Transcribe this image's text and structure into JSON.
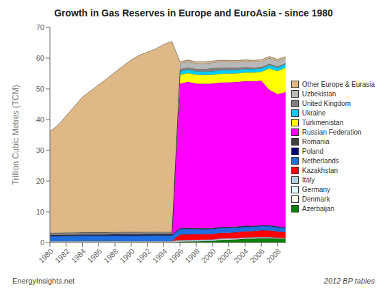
{
  "chart_data": {
    "type": "area",
    "stacked": true,
    "title": "Growth in Gas Reserves in Europe and EuroAsia - since 1980",
    "y_label": "Trillion Cubic Metres (TCM)",
    "annotations": [
      "EnergyInsights.net",
      "2012 BP tables"
    ],
    "x": [
      1980,
      1981,
      1982,
      1983,
      1984,
      1985,
      1986,
      1987,
      1988,
      1989,
      1990,
      1991,
      1992,
      1993,
      1994,
      1995,
      1996,
      1997,
      1998,
      1999,
      2000,
      2001,
      2002,
      2003,
      2004,
      2005,
      2006,
      2007,
      2008,
      2009
    ],
    "xlim": [
      1980,
      2009
    ],
    "xticks": [
      1980,
      1982,
      1984,
      1986,
      1988,
      1990,
      1992,
      1994,
      1996,
      1998,
      2000,
      2002,
      2004,
      2006,
      2008
    ],
    "ylim": [
      0,
      70
    ],
    "yticks": [
      0,
      10,
      20,
      30,
      40,
      50,
      60,
      70
    ],
    "grid": false,
    "legend": "right",
    "series": [
      {
        "name": "Azerbaijan",
        "color": "#008000",
        "values": [
          0.0,
          0.0,
          0.0,
          0.0,
          0.0,
          0.0,
          0.0,
          0.0,
          0.0,
          0.0,
          0.0,
          0.0,
          0.0,
          0.0,
          0.0,
          0.0,
          0.3,
          0.35,
          0.4,
          0.45,
          0.5,
          0.85,
          0.9,
          1.0,
          1.2,
          1.3,
          1.4,
          1.4,
          1.3,
          1.2
        ]
      },
      {
        "name": "Denmark",
        "color": "#fffff0",
        "values": [
          0.07,
          0.07,
          0.07,
          0.07,
          0.08,
          0.08,
          0.08,
          0.08,
          0.1,
          0.1,
          0.1,
          0.1,
          0.1,
          0.1,
          0.09,
          0.09,
          0.09,
          0.08,
          0.08,
          0.08,
          0.08,
          0.08,
          0.07,
          0.07,
          0.07,
          0.06,
          0.06,
          0.05,
          0.05,
          0.05
        ]
      },
      {
        "name": "Germany",
        "color": "#e0ffff",
        "values": [
          0.25,
          0.25,
          0.25,
          0.25,
          0.25,
          0.25,
          0.25,
          0.25,
          0.25,
          0.22,
          0.22,
          0.22,
          0.22,
          0.22,
          0.22,
          0.22,
          0.22,
          0.22,
          0.22,
          0.22,
          0.22,
          0.22,
          0.22,
          0.22,
          0.22,
          0.22,
          0.18,
          0.18,
          0.15,
          0.15
        ]
      },
      {
        "name": "Italy",
        "color": "#b0d0e8",
        "values": [
          0.2,
          0.2,
          0.2,
          0.2,
          0.2,
          0.2,
          0.2,
          0.2,
          0.2,
          0.2,
          0.2,
          0.2,
          0.2,
          0.2,
          0.2,
          0.2,
          0.2,
          0.2,
          0.2,
          0.2,
          0.2,
          0.2,
          0.2,
          0.18,
          0.17,
          0.16,
          0.15,
          0.13,
          0.12,
          0.1
        ]
      },
      {
        "name": "Kazakhstan",
        "color": "#ff0000",
        "values": [
          0.0,
          0.0,
          0.0,
          0.0,
          0.0,
          0.0,
          0.0,
          0.0,
          0.0,
          0.0,
          0.0,
          0.0,
          0.0,
          0.0,
          0.0,
          0.0,
          1.8,
          1.8,
          1.8,
          1.8,
          1.8,
          1.8,
          1.8,
          1.9,
          2.0,
          2.0,
          2.2,
          2.2,
          2.0,
          1.9
        ]
      },
      {
        "name": "Netherlands",
        "color": "#1e6fdf",
        "values": [
          1.6,
          1.6,
          1.65,
          1.65,
          1.7,
          1.7,
          1.7,
          1.7,
          1.75,
          1.75,
          1.75,
          1.75,
          1.8,
          1.8,
          1.8,
          1.8,
          1.8,
          1.8,
          1.7,
          1.6,
          1.6,
          1.6,
          1.6,
          1.5,
          1.5,
          1.4,
          1.4,
          1.4,
          1.4,
          1.3
        ]
      },
      {
        "name": "Poland",
        "color": "#000080",
        "values": [
          0.15,
          0.15,
          0.15,
          0.15,
          0.15,
          0.15,
          0.15,
          0.15,
          0.15,
          0.15,
          0.15,
          0.15,
          0.15,
          0.15,
          0.15,
          0.15,
          0.15,
          0.15,
          0.15,
          0.15,
          0.15,
          0.15,
          0.15,
          0.15,
          0.15,
          0.15,
          0.14,
          0.14,
          0.14,
          0.14
        ]
      },
      {
        "name": "Romania",
        "color": "#404040",
        "values": [
          0.2,
          0.2,
          0.2,
          0.2,
          0.2,
          0.2,
          0.2,
          0.2,
          0.2,
          0.2,
          0.2,
          0.2,
          0.2,
          0.2,
          0.2,
          0.18,
          0.18,
          0.18,
          0.18,
          0.18,
          0.18,
          0.18,
          0.18,
          0.18,
          0.17,
          0.16,
          0.15,
          0.15,
          0.14,
          0.13
        ]
      },
      {
        "name": "Russian Federation",
        "color": "#ff00ff",
        "values": [
          0.0,
          0.0,
          0.0,
          0.0,
          0.0,
          0.0,
          0.0,
          0.0,
          0.0,
          0.0,
          0.0,
          0.0,
          0.0,
          0.0,
          0.0,
          0.0,
          47.0,
          47.5,
          47.0,
          47.0,
          47.0,
          47.0,
          47.0,
          47.0,
          47.0,
          47.0,
          47.0,
          44.0,
          43.0,
          44.0
        ]
      },
      {
        "name": "Turkmenistan",
        "color": "#ffff00",
        "values": [
          0.0,
          0.0,
          0.0,
          0.0,
          0.0,
          0.0,
          0.0,
          0.0,
          0.0,
          0.0,
          0.0,
          0.0,
          0.0,
          0.0,
          0.0,
          0.0,
          2.86,
          2.86,
          2.86,
          2.86,
          2.86,
          2.86,
          2.86,
          2.86,
          2.86,
          2.86,
          2.86,
          7.0,
          7.5,
          8.0
        ]
      },
      {
        "name": "Ukraine",
        "color": "#00ccff",
        "values": [
          0.0,
          0.0,
          0.0,
          0.0,
          0.0,
          0.0,
          0.0,
          0.0,
          0.0,
          0.0,
          0.0,
          0.0,
          0.0,
          0.0,
          0.0,
          0.0,
          1.12,
          1.12,
          1.12,
          1.12,
          1.12,
          1.12,
          1.12,
          1.12,
          1.12,
          1.12,
          1.12,
          1.12,
          1.12,
          1.12
        ]
      },
      {
        "name": "United Kingdom",
        "color": "#808080",
        "values": [
          0.7,
          0.7,
          0.7,
          0.7,
          0.75,
          0.75,
          0.75,
          0.75,
          0.75,
          0.8,
          0.8,
          0.8,
          0.8,
          0.8,
          0.8,
          0.8,
          0.75,
          0.75,
          0.75,
          0.75,
          1.0,
          0.9,
          0.8,
          0.7,
          0.6,
          0.5,
          0.45,
          0.4,
          0.35,
          0.3
        ]
      },
      {
        "name": "Uzbekistan",
        "color": "#b8b8b8",
        "values": [
          0.0,
          0.0,
          0.0,
          0.0,
          0.0,
          0.0,
          0.0,
          0.0,
          0.0,
          0.0,
          0.0,
          0.0,
          0.0,
          0.0,
          0.0,
          0.0,
          1.86,
          1.86,
          1.86,
          1.86,
          1.86,
          1.86,
          1.86,
          1.86,
          1.86,
          1.86,
          1.86,
          1.86,
          1.86,
          1.6
        ]
      },
      {
        "name": "Other Europe & Eurasia",
        "color": "#deb887",
        "values": [
          33.0,
          35.0,
          38.0,
          41.0,
          44.0,
          46.0,
          48.0,
          50.0,
          52.0,
          54.0,
          56.0,
          57.5,
          58.5,
          59.5,
          61.0,
          62.0,
          0.5,
          0.5,
          0.5,
          0.5,
          0.5,
          0.5,
          0.5,
          0.5,
          0.5,
          0.5,
          0.5,
          0.5,
          0.5,
          0.5
        ]
      }
    ]
  }
}
